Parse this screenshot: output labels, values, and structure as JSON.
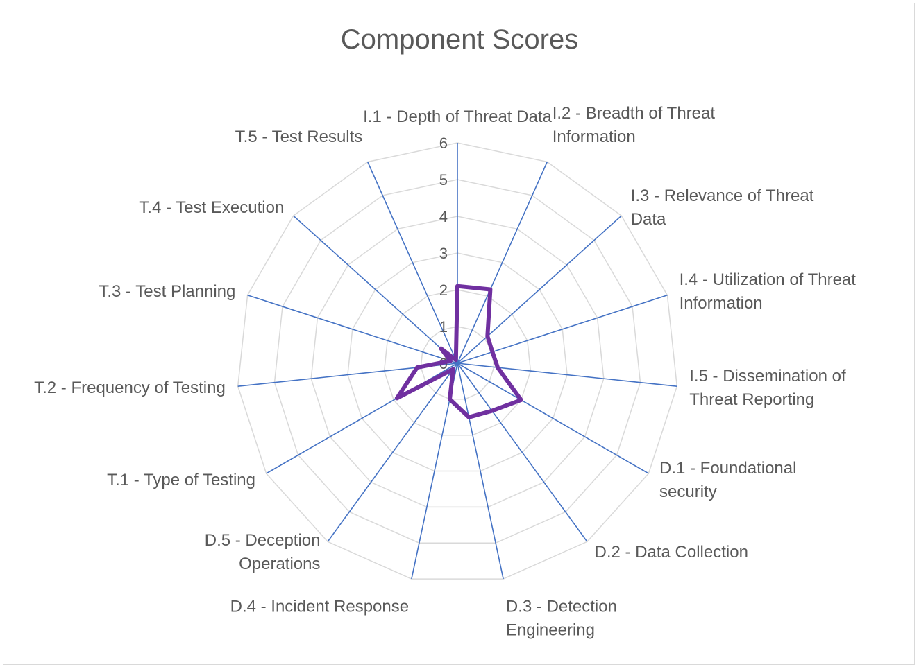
{
  "chart_data": {
    "type": "radar",
    "title": "Component Scores",
    "rmax": 6,
    "ticks": [
      "0",
      "1",
      "2",
      "3",
      "4",
      "5",
      "6"
    ],
    "series": [
      {
        "color": "#7030a0",
        "values": [
          2.1,
          2.2,
          1.1,
          1.0,
          1.1,
          2.0,
          1.6,
          1.5,
          1.0,
          0.2,
          1.9,
          1.1,
          0.2,
          0.6,
          0.1
        ]
      }
    ],
    "categories": [
      {
        "lines": [
          "I.1 - Depth of Threat Data"
        ]
      },
      {
        "lines": [
          "I.2 - Breadth of Threat",
          "Information"
        ]
      },
      {
        "lines": [
          "I.3 - Relevance of Threat",
          "Data"
        ]
      },
      {
        "lines": [
          "I.4 - Utilization of Threat",
          "Information"
        ]
      },
      {
        "lines": [
          "I.5 - Dissemination of",
          "Threat Reporting"
        ]
      },
      {
        "lines": [
          "D.1 - Foundational",
          "security"
        ]
      },
      {
        "lines": [
          "D.2 - Data Collection"
        ]
      },
      {
        "lines": [
          "D.3 - Detection",
          "Engineering"
        ]
      },
      {
        "lines": [
          "D.4 - Incident Response"
        ]
      },
      {
        "lines": [
          "D.5 - Deception",
          "Operations"
        ]
      },
      {
        "lines": [
          "T.1 - Type of Testing"
        ]
      },
      {
        "lines": [
          "T.2 - Frequency of Testing"
        ]
      },
      {
        "lines": [
          "T.3 - Test Planning"
        ]
      },
      {
        "lines": [
          "T.4 - Test Execution"
        ]
      },
      {
        "lines": [
          "T.5 - Test Results"
        ]
      }
    ],
    "spoke_color": "#4472c4",
    "grid_color": "#d9d9d9",
    "legend": "none"
  }
}
